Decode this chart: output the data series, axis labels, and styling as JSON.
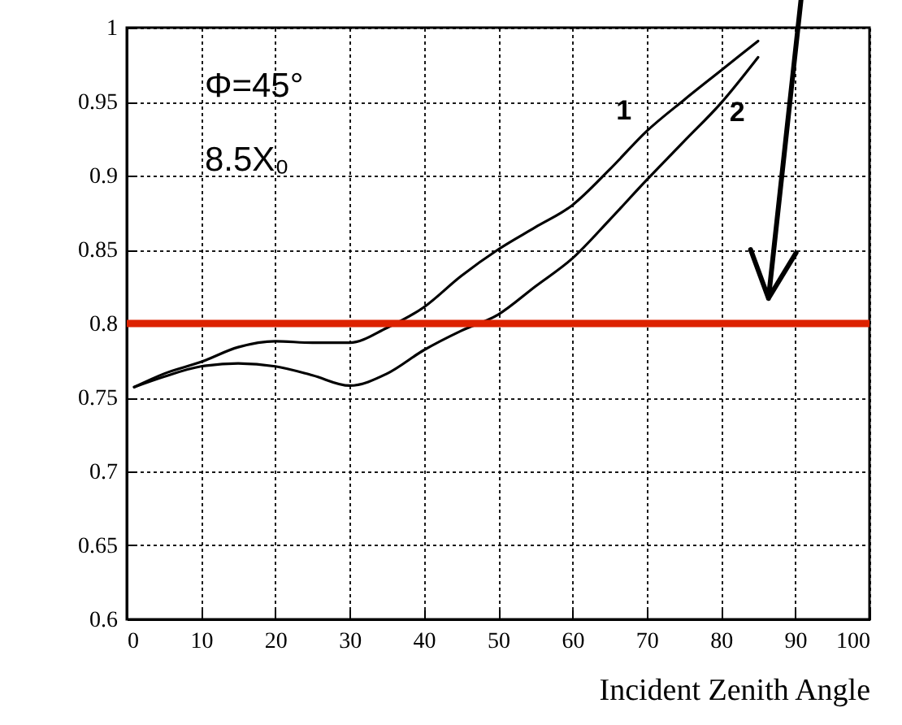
{
  "chart_data": {
    "type": "line",
    "xlabel": "Incident Zenith Angle",
    "xlim": [
      0,
      100
    ],
    "xticks": [
      0,
      10,
      20,
      30,
      40,
      50,
      60,
      70,
      80,
      90,
      100
    ],
    "ylim": [
      0.6,
      1
    ],
    "yticks": [
      0.6,
      0.65,
      0.7,
      0.75,
      0.8,
      0.85,
      0.9,
      0.95,
      1
    ],
    "grid": true,
    "line_style": "solid",
    "marker": "none",
    "annotations": [
      "Φ=45°",
      "8.5X₀"
    ],
    "ref_lines": [
      {
        "axis": "y",
        "value": 0.8,
        "color": "#dd2200"
      }
    ],
    "series": [
      {
        "name": "1",
        "color": "#000000",
        "x": [
          1,
          5,
          10,
          15,
          20,
          25,
          30,
          35,
          40,
          45,
          50,
          55,
          60,
          65,
          70,
          75,
          80,
          85
        ],
        "values": [
          0.757,
          0.766,
          0.774,
          0.784,
          0.788,
          0.787,
          0.787,
          0.797,
          0.811,
          0.832,
          0.85,
          0.865,
          0.88,
          0.904,
          0.93,
          0.951,
          0.971,
          0.991
        ]
      },
      {
        "name": "2",
        "color": "#000000",
        "x": [
          1,
          5,
          10,
          15,
          20,
          25,
          30,
          35,
          40,
          45,
          50,
          55,
          60,
          65,
          70,
          75,
          80,
          85
        ],
        "values": [
          0.757,
          0.764,
          0.771,
          0.773,
          0.771,
          0.765,
          0.758,
          0.766,
          0.782,
          0.795,
          0.806,
          0.825,
          0.844,
          0.87,
          0.897,
          0.923,
          0.949,
          0.98
        ]
      }
    ]
  }
}
